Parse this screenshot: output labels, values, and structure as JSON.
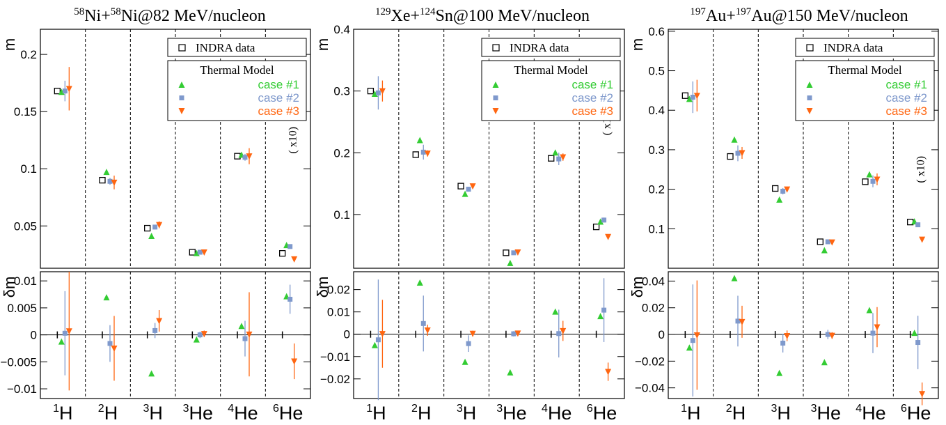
{
  "colors": {
    "data": "#000000",
    "case1": "#33cc33",
    "case2": "#7f99cc",
    "case3": "#ff6611"
  },
  "legend": {
    "data_label": "INDRA data",
    "model_header": "Thermal Model",
    "case_labels": [
      "case #1",
      "case #2",
      "case #3"
    ]
  },
  "categories": [
    "1H",
    "2H",
    "3H",
    "3He",
    "4He",
    "6He"
  ],
  "category_labels": [
    {
      "sup": "1",
      "base": "H"
    },
    {
      "sup": "2",
      "base": "H"
    },
    {
      "sup": "3",
      "base": "H"
    },
    {
      "sup": "3",
      "base": "He"
    },
    {
      "sup": "4",
      "base": "He"
    },
    {
      "sup": "6",
      "base": "He"
    }
  ],
  "scale_note": "( x10)",
  "chart_data": [
    {
      "type": "scatter",
      "title": {
        "sup1": "58",
        "a": "Ni+",
        "sup2": "58",
        "b": "Ni@82 MeV/nucleon"
      },
      "ylabel_top": "m",
      "ylabel_bottom": "δm",
      "top": {
        "ylim": [
          0.013,
          0.222
        ],
        "yticks": [
          0.05,
          0.1,
          0.15,
          0.2
        ],
        "ytick_labels": [
          "0.05",
          "0.1",
          "0.15",
          "0.2"
        ],
        "data": [
          0.168,
          0.09,
          0.048,
          0.027,
          0.111,
          0.026
        ],
        "data_err": [
          0.002,
          0.002,
          0.001,
          0.001,
          0.002,
          0.001
        ],
        "case1": [
          0.167,
          0.097,
          0.041,
          0.026,
          0.112,
          0.033
        ],
        "case2": [
          0.168,
          0.089,
          0.049,
          0.027,
          0.11,
          0.032
        ],
        "case3": [
          0.17,
          0.088,
          0.051,
          0.027,
          0.111,
          0.021
        ],
        "case2_err": [
          0.009,
          0.003,
          0.002,
          0.001,
          0.003,
          0.002
        ],
        "case3_err": [
          0.019,
          0.006,
          0.003,
          0.001,
          0.007,
          0.002
        ]
      },
      "bottom": {
        "ylim": [
          -0.0118,
          0.0117
        ],
        "yticks": [
          -0.01,
          -0.005,
          0,
          0.005,
          0.01
        ],
        "ytick_labels": [
          "−0.01",
          "−0.005",
          "0",
          "0.005",
          "0.01"
        ],
        "case1": [
          -0.0013,
          0.0069,
          -0.0072,
          -0.0009,
          0.0016,
          0.0071
        ],
        "case2": [
          0.0003,
          -0.0016,
          0.0008,
          0.0,
          -0.0007,
          0.0066
        ],
        "case3": [
          0.0007,
          -0.0025,
          0.0026,
          0.0002,
          0.0001,
          -0.0049
        ],
        "case2_err": [
          0.0078,
          0.0034,
          0.0014,
          0.0006,
          0.0033,
          0.0027
        ],
        "case3_err": [
          0.011,
          0.006,
          0.002,
          0.0006,
          0.0078,
          0.0033
        ]
      }
    },
    {
      "type": "scatter",
      "title": {
        "sup1": "129",
        "a": "Xe+",
        "sup2": "124",
        "b": "Sn@100 MeV/nucleon"
      },
      "ylabel_top": "m",
      "ylabel_bottom": "δm",
      "top": {
        "ylim": [
          0.013,
          0.4
        ],
        "yticks": [
          0.1,
          0.2,
          0.3,
          0.4
        ],
        "ytick_labels": [
          "0.1",
          "0.2",
          "0.3",
          "0.4"
        ],
        "data": [
          0.3,
          0.197,
          0.146,
          0.038,
          0.191,
          0.08
        ],
        "data_err": [
          0.004,
          0.003,
          0.003,
          0.002,
          0.003,
          0.002
        ],
        "case1": [
          0.295,
          0.22,
          0.133,
          0.021,
          0.2,
          0.088
        ],
        "case2": [
          0.297,
          0.201,
          0.141,
          0.038,
          0.19,
          0.091
        ],
        "case3": [
          0.3,
          0.199,
          0.146,
          0.039,
          0.193,
          0.064
        ],
        "case2_err": [
          0.027,
          0.012,
          0.004,
          0.002,
          0.01,
          0.004
        ],
        "case3_err": [
          0.017,
          0.005,
          0.002,
          0.001,
          0.006,
          0.003
        ]
      },
      "bottom": {
        "ylim": [
          -0.0288,
          0.028
        ],
        "yticks": [
          -0.02,
          -0.01,
          0,
          0.01,
          0.02
        ],
        "ytick_labels": [
          "−0.02",
          "−0.01",
          "0",
          "0.01",
          "0.02"
        ],
        "case1": [
          -0.005,
          0.023,
          -0.0125,
          -0.0172,
          0.01,
          0.008
        ],
        "case2": [
          -0.0025,
          0.0048,
          -0.0042,
          0.0002,
          0.0003,
          0.0108
        ],
        "case3": [
          0.0002,
          0.0018,
          0.0003,
          0.0004,
          0.0015,
          -0.0168
        ],
        "case2_err": [
          0.027,
          0.0125,
          0.0037,
          0.0012,
          0.0107,
          0.0143
        ],
        "case3_err": [
          0.0152,
          0.0025,
          0.0013,
          0.0012,
          0.0045,
          0.0041
        ]
      }
    },
    {
      "type": "scatter",
      "title": {
        "sup1": "197",
        "a": "Au+",
        "sup2": "197",
        "b": "Au@150 MeV/nucleon"
      },
      "ylabel_top": "m",
      "ylabel_bottom": "δm",
      "top": {
        "ylim": [
          0.0,
          0.605
        ],
        "yticks": [
          0.1,
          0.2,
          0.3,
          0.4,
          0.5,
          0.6
        ],
        "ytick_labels": [
          "0.1",
          "0.2",
          "0.3",
          "0.4",
          "0.5",
          "0.6"
        ],
        "data": [
          0.437,
          0.283,
          0.202,
          0.067,
          0.219,
          0.117
        ],
        "data_err": [
          0.008,
          0.007,
          0.006,
          0.004,
          0.006,
          0.005
        ],
        "case1": [
          0.428,
          0.325,
          0.173,
          0.045,
          0.237,
          0.118
        ],
        "case2": [
          0.433,
          0.291,
          0.195,
          0.067,
          0.22,
          0.11
        ],
        "case3": [
          0.437,
          0.292,
          0.2,
          0.066,
          0.225,
          0.073
        ],
        "case2_err": [
          0.04,
          0.02,
          0.008,
          0.004,
          0.015,
          0.005
        ],
        "case3_err": [
          0.04,
          0.015,
          0.005,
          0.004,
          0.015,
          0.004
        ]
      },
      "bottom": {
        "ylim": [
          -0.048,
          0.047
        ],
        "yticks": [
          -0.04,
          -0.02,
          0,
          0.02,
          0.04
        ],
        "ytick_labels": [
          "−0.04",
          "−0.02",
          "0",
          "0.02",
          "0.04"
        ],
        "case1": [
          -0.01,
          0.042,
          -0.029,
          -0.021,
          0.018,
          0.001
        ],
        "case2": [
          -0.0045,
          0.01,
          -0.0065,
          0.0,
          0.001,
          -0.006
        ],
        "case3": [
          -0.0005,
          0.0095,
          -0.001,
          -0.0008,
          0.0055,
          -0.0445
        ],
        "case2_err": [
          0.042,
          0.019,
          0.007,
          0.0035,
          0.015,
          0.02
        ],
        "case3_err": [
          0.041,
          0.012,
          0.004,
          0.0025,
          0.015,
          0.0085
        ]
      }
    }
  ]
}
